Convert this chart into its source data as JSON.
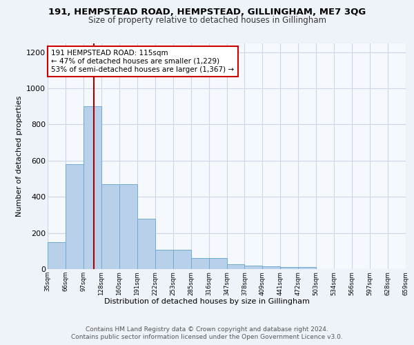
{
  "title1": "191, HEMPSTEAD ROAD, HEMPSTEAD, GILLINGHAM, ME7 3QG",
  "title2": "Size of property relative to detached houses in Gillingham",
  "xlabel": "Distribution of detached houses by size in Gillingham",
  "ylabel": "Number of detached properties",
  "bar_values": [
    150,
    580,
    900,
    470,
    470,
    280,
    105,
    105,
    60,
    60,
    27,
    20,
    15,
    10,
    10,
    0,
    0,
    0,
    0,
    0
  ],
  "bin_labels": [
    "35sqm",
    "66sqm",
    "97sqm",
    "128sqm",
    "160sqm",
    "191sqm",
    "222sqm",
    "253sqm",
    "285sqm",
    "316sqm",
    "347sqm",
    "378sqm",
    "409sqm",
    "441sqm",
    "472sqm",
    "503sqm",
    "534sqm",
    "566sqm",
    "597sqm",
    "628sqm",
    "659sqm"
  ],
  "bar_color": "#b8d0ea",
  "bar_edge_color": "#6eaad4",
  "vline_color": "#aa0000",
  "annotation_text": "191 HEMPSTEAD ROAD: 115sqm\n← 47% of detached houses are smaller (1,229)\n53% of semi-detached houses are larger (1,367) →",
  "annotation_box_color": "#ffffff",
  "annotation_box_edge": "#cc0000",
  "ylim": [
    0,
    1250
  ],
  "yticks": [
    0,
    200,
    400,
    600,
    800,
    1000,
    1200
  ],
  "footer1": "Contains HM Land Registry data © Crown copyright and database right 2024.",
  "footer2": "Contains public sector information licensed under the Open Government Licence v3.0.",
  "bg_color": "#eef2f9",
  "plot_bg_color": "#f5f8fd",
  "grid_color": "#cdd6e8"
}
